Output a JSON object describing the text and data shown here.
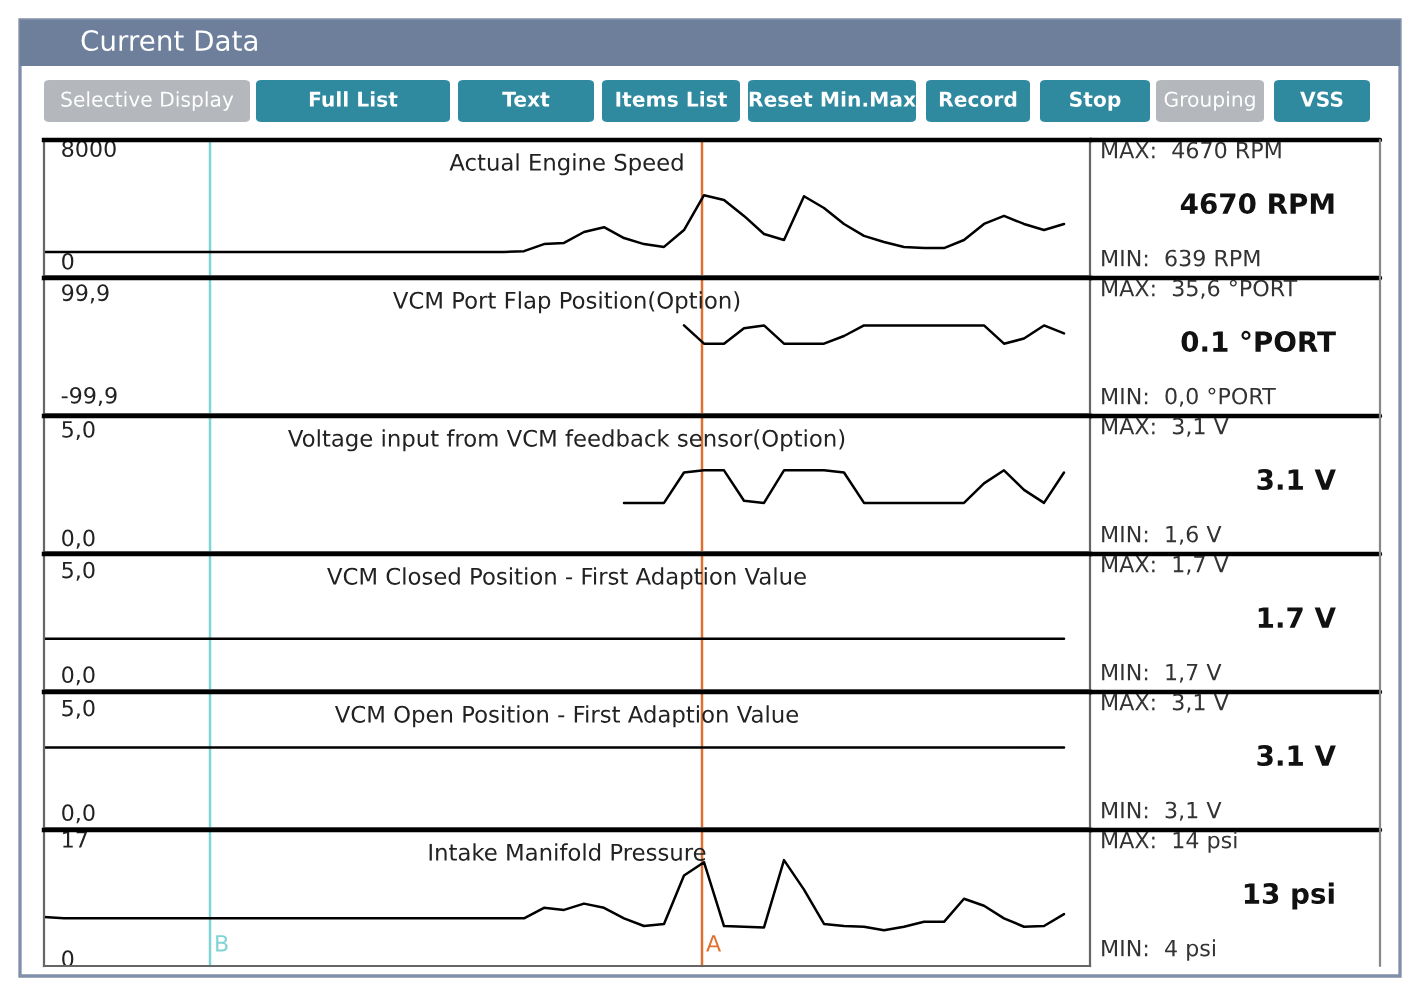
{
  "chart_data": [
    {
      "type": "line",
      "title": "Actual Engine Speed",
      "categories": [
        null,
        null,
        null,
        null,
        null,
        null,
        null,
        null,
        null,
        null,
        null,
        null,
        null,
        null,
        null,
        null,
        null,
        null,
        null,
        null,
        null,
        null,
        null,
        null,
        null,
        null,
        null,
        null,
        null,
        null,
        null,
        null,
        null,
        null,
        null,
        null,
        null,
        null,
        null,
        null,
        null,
        null,
        null,
        null,
        null,
        null,
        null,
        null,
        null,
        null,
        null,
        null
      ],
      "series": [
        {
          "color": "#000000",
          "values": [
            639,
            639,
            639,
            639,
            639,
            639,
            639,
            639,
            639,
            639,
            639,
            639,
            639,
            639,
            639,
            639,
            639,
            639,
            639,
            639,
            639,
            639,
            639,
            639,
            700,
            1200,
            1280,
            2060,
            2400,
            1630,
            1200,
            1000,
            2200,
            4670,
            4330,
            3200,
            1920,
            1490,
            4600,
            3760,
            2630,
            1780,
            1350,
            1000,
            920,
            920,
            1490,
            2630,
            3200,
            2630,
            2200,
            2630
          ]
        }
      ],
      "ylim": [
        -1065,
        8590
      ],
      "yticks": [
        0,
        8000
      ],
      "annotations": [
        "Current Data",
        "Selective Display",
        "Full List",
        "Text",
        "Items List",
        "Reset Min.Max",
        "Record",
        "Stop",
        "Grouping",
        "VSS",
        "MAX:  4670 RPM",
        "4670 RPM",
        "MIN:  639 RPM"
      ]
    },
    {
      "type": "line",
      "title": "VCM Port Flap Position(Option)",
      "categories": [
        null,
        null,
        null,
        null,
        null,
        null,
        null,
        null,
        null,
        null,
        null,
        null,
        null,
        null,
        null,
        null,
        null,
        null,
        null,
        null,
        null,
        null,
        null,
        null,
        null,
        null,
        null,
        null,
        null,
        null,
        null,
        null,
        null,
        null,
        null,
        null,
        null,
        null,
        null,
        null,
        null,
        null,
        null,
        null,
        null,
        null,
        null,
        null,
        null,
        null,
        null,
        null
      ],
      "series": [
        {
          "color": "#000000",
          "values": [
            null,
            null,
            null,
            null,
            null,
            null,
            null,
            null,
            null,
            null,
            null,
            null,
            null,
            null,
            null,
            null,
            null,
            null,
            null,
            null,
            null,
            null,
            null,
            null,
            null,
            null,
            null,
            null,
            null,
            null,
            null,
            null,
            35.6,
            0.1,
            0.0,
            30,
            35.6,
            0.0,
            0.0,
            0.0,
            15,
            35.6,
            35.6,
            35.6,
            35.6,
            35.6,
            35.6,
            35.6,
            0.0,
            10,
            35.6,
            20
          ]
        }
      ],
      "ylim": [
        -137,
        128
      ],
      "yticks": [
        {
          "value": 99.9,
          "label": "99,9"
        },
        {
          "value": -99.9,
          "label": "-99,9"
        }
      ],
      "annotations": [
        "MAX:  35,6 °PORT",
        "0.1 °PORT",
        "MIN:  0,0 °PORT"
      ]
    },
    {
      "type": "line",
      "title": "Voltage input from VCM feedback sensor(Option)",
      "categories": [
        null,
        null,
        null,
        null,
        null,
        null,
        null,
        null,
        null,
        null,
        null,
        null,
        null,
        null,
        null,
        null,
        null,
        null,
        null,
        null,
        null,
        null,
        null,
        null,
        null,
        null,
        null,
        null,
        null,
        null,
        null,
        null,
        null,
        null,
        null,
        null,
        null,
        null,
        null,
        null,
        null,
        null,
        null,
        null,
        null,
        null,
        null,
        null,
        null,
        null,
        null,
        null
      ],
      "series": [
        {
          "color": "#000000",
          "values": [
            null,
            null,
            null,
            null,
            null,
            null,
            null,
            null,
            null,
            null,
            null,
            null,
            null,
            null,
            null,
            null,
            null,
            null,
            null,
            null,
            null,
            null,
            null,
            null,
            null,
            null,
            null,
            null,
            null,
            1.6,
            1.6,
            1.6,
            3.0,
            3.1,
            3.1,
            1.7,
            1.6,
            3.1,
            3.1,
            3.1,
            3.0,
            1.6,
            1.6,
            1.6,
            1.6,
            1.6,
            1.6,
            2.5,
            3.1,
            2.2,
            1.6,
            3.0
          ]
        }
      ],
      "ylim": [
        -0.66,
        5.6
      ],
      "yticks": [
        {
          "value": 5.0,
          "label": "5,0"
        },
        {
          "value": 0.0,
          "label": "0,0"
        }
      ],
      "annotations": [
        "MAX:  3,1 V",
        "3.1 V",
        "MIN:  1,6 V"
      ]
    },
    {
      "type": "line",
      "title": "VCM Closed Position - First Adaption Value",
      "categories": [
        null,
        null,
        null,
        null,
        null,
        null,
        null,
        null,
        null,
        null,
        null,
        null,
        null,
        null,
        null,
        null,
        null,
        null,
        null,
        null,
        null,
        null,
        null,
        null,
        null,
        null,
        null,
        null,
        null,
        null,
        null,
        null,
        null,
        null,
        null,
        null,
        null,
        null,
        null,
        null,
        null,
        null,
        null,
        null,
        null,
        null,
        null,
        null,
        null,
        null,
        null,
        null
      ],
      "series": [
        {
          "color": "#000000",
          "values": [
            1.7,
            1.7,
            1.7,
            1.7,
            1.7,
            1.7,
            1.7,
            1.7,
            1.7,
            1.7,
            1.7,
            1.7,
            1.7,
            1.7,
            1.7,
            1.7,
            1.7,
            1.7,
            1.7,
            1.7,
            1.7,
            1.7,
            1.7,
            1.7,
            1.7,
            1.7,
            1.7,
            1.7,
            1.7,
            1.7,
            1.7,
            1.7,
            1.7,
            1.7,
            1.7,
            1.7,
            1.7,
            1.7,
            1.7,
            1.7,
            1.7,
            1.7,
            1.7,
            1.7,
            1.7,
            1.7,
            1.7,
            1.7,
            1.7,
            1.7,
            1.7,
            1.7
          ]
        }
      ],
      "ylim": [
        -0.75,
        5.75
      ],
      "yticks": [
        {
          "value": 5.0,
          "label": "5,0"
        },
        {
          "value": 0.0,
          "label": "0,0"
        }
      ],
      "annotations": [
        "MAX:  1,7 V",
        "1.7 V",
        "MIN:  1,7 V"
      ]
    },
    {
      "type": "line",
      "title": "VCM Open Position - First Adaption Value",
      "categories": [
        null,
        null,
        null,
        null,
        null,
        null,
        null,
        null,
        null,
        null,
        null,
        null,
        null,
        null,
        null,
        null,
        null,
        null,
        null,
        null,
        null,
        null,
        null,
        null,
        null,
        null,
        null,
        null,
        null,
        null,
        null,
        null,
        null,
        null,
        null,
        null,
        null,
        null,
        null,
        null,
        null,
        null,
        null,
        null,
        null,
        null,
        null,
        null,
        null,
        null,
        null,
        null
      ],
      "series": [
        {
          "color": "#000000",
          "values": [
            3.1,
            3.1,
            3.1,
            3.1,
            3.1,
            3.1,
            3.1,
            3.1,
            3.1,
            3.1,
            3.1,
            3.1,
            3.1,
            3.1,
            3.1,
            3.1,
            3.1,
            3.1,
            3.1,
            3.1,
            3.1,
            3.1,
            3.1,
            3.1,
            3.1,
            3.1,
            3.1,
            3.1,
            3.1,
            3.1,
            3.1,
            3.1,
            3.1,
            3.1,
            3.1,
            3.1,
            3.1,
            3.1,
            3.1,
            3.1,
            3.1,
            3.1,
            3.1,
            3.1,
            3.1,
            3.1,
            3.1,
            3.1,
            3.1,
            3.1,
            3.1,
            3.1
          ]
        }
      ],
      "ylim": [
        -0.75,
        5.75
      ],
      "yticks": [
        {
          "value": 5.0,
          "label": "5,0"
        },
        {
          "value": 0.0,
          "label": "0,0"
        }
      ],
      "annotations": [
        "MAX:  3,1 V",
        "3.1 V",
        "MIN:  3,1 V"
      ]
    },
    {
      "type": "line",
      "title": "Intake Manifold Pressure",
      "categories": [
        null,
        null,
        null,
        null,
        null,
        null,
        null,
        null,
        null,
        null,
        null,
        null,
        null,
        null,
        null,
        null,
        null,
        null,
        null,
        null,
        null,
        null,
        null,
        null,
        null,
        null,
        null,
        null,
        null,
        null,
        null,
        null,
        null,
        null,
        null,
        null,
        null,
        null,
        null,
        null,
        null,
        null,
        null,
        null,
        null,
        null,
        null,
        null,
        null,
        null,
        null,
        null
      ],
      "series": [
        {
          "color": "#000000",
          "values": [
            5.9,
            5.7,
            5.7,
            5.7,
            5.7,
            5.7,
            5.7,
            5.7,
            5.7,
            5.7,
            5.7,
            5.7,
            5.7,
            5.7,
            5.7,
            5.7,
            5.7,
            5.7,
            5.7,
            5.7,
            5.7,
            5.7,
            5.7,
            5.7,
            5.7,
            7.2,
            6.9,
            7.8,
            7.2,
            5.7,
            4.6,
            4.9,
            11.8,
            13.7,
            4.6,
            4.5,
            4.4,
            14,
            9.8,
            4.9,
            4.6,
            4.5,
            4.0,
            4.5,
            5.2,
            5.2,
            8.5,
            7.5,
            5.7,
            4.5,
            4.6,
            6.3
          ]
        }
      ],
      "ylim": [
        -1.1,
        18.3
      ],
      "yticks": [
        17,
        0
      ],
      "annotations": [
        "B",
        "A",
        "MAX:  14 psi",
        "13 psi",
        "MIN:  4 psi"
      ]
    }
  ]
}
